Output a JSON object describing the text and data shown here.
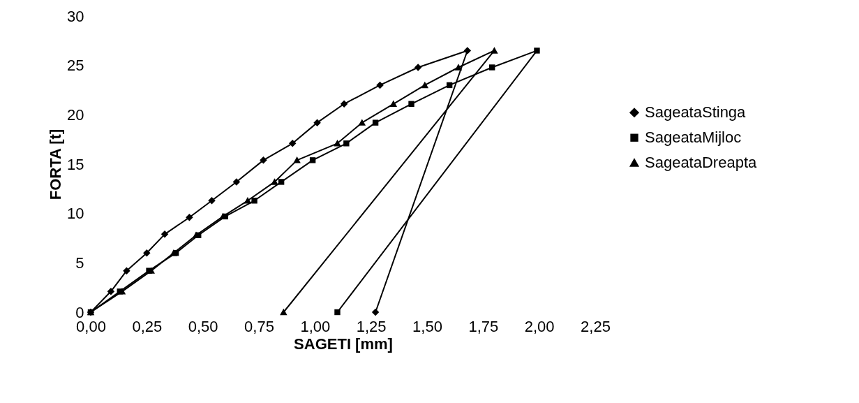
{
  "chart_data": {
    "type": "line",
    "xlabel": "SAGETI [mm]",
    "ylabel": "FORTA [t]",
    "xlim": [
      0,
      2.25
    ],
    "xticks": [
      {
        "value": 0,
        "label": "0,00"
      },
      {
        "value": 0.25,
        "label": "0,25"
      },
      {
        "value": 0.5,
        "label": "0,50"
      },
      {
        "value": 0.75,
        "label": "0,75"
      },
      {
        "value": 1,
        "label": "1,00"
      },
      {
        "value": 1.25,
        "label": "1,25"
      },
      {
        "value": 1.5,
        "label": "1,50"
      },
      {
        "value": 1.75,
        "label": "1,75"
      },
      {
        "value": 2,
        "label": "2,00"
      },
      {
        "value": 2.25,
        "label": "2,25"
      }
    ],
    "ylim": [
      0,
      30
    ],
    "yticks": [
      0,
      5,
      10,
      15,
      20,
      25,
      30
    ],
    "grid": false,
    "legend": "right",
    "line_style": "solid",
    "series": [
      {
        "name": "SageataStinga",
        "color": "#000000",
        "marker": "diamond",
        "x": [
          0,
          0.09,
          0.16,
          0.25,
          0.33,
          0.44,
          0.54,
          0.65,
          0.77,
          0.9,
          1.01,
          1.13,
          1.29,
          1.46,
          1.68,
          1.27
        ],
        "values": [
          0,
          2.1,
          4.2,
          6.0,
          7.9,
          9.6,
          11.3,
          13.2,
          15.4,
          17.1,
          19.2,
          21.1,
          23.0,
          24.8,
          26.5,
          0
        ]
      },
      {
        "name": "SageataMijloc",
        "color": "#000000",
        "marker": "square",
        "x": [
          0,
          0.13,
          0.26,
          0.38,
          0.48,
          0.6,
          0.73,
          0.85,
          0.99,
          1.14,
          1.27,
          1.43,
          1.6,
          1.79,
          1.99,
          1.1
        ],
        "values": [
          0,
          2.1,
          4.2,
          6.0,
          7.8,
          9.7,
          11.3,
          13.2,
          15.4,
          17.1,
          19.2,
          21.1,
          23.0,
          24.8,
          26.5,
          0
        ]
      },
      {
        "name": "SageataDreapta",
        "color": "#000000",
        "marker": "triangle",
        "x": [
          0,
          0.14,
          0.27,
          0.37,
          0.47,
          0.59,
          0.7,
          0.82,
          0.92,
          1.1,
          1.21,
          1.35,
          1.49,
          1.64,
          1.8,
          0.86
        ],
        "values": [
          0,
          2.1,
          4.2,
          6.0,
          7.8,
          9.7,
          11.3,
          13.2,
          15.4,
          17.1,
          19.2,
          21.1,
          23.0,
          24.8,
          26.5,
          0
        ]
      }
    ]
  }
}
